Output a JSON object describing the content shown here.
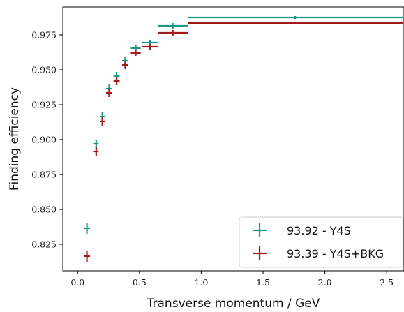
{
  "chart_data": {
    "type": "scatter",
    "xlabel": "Transverse momentum / GeV",
    "ylabel": "Finding efficiency",
    "xlim": [
      -0.12,
      2.64
    ],
    "ylim": [
      0.806,
      0.995
    ],
    "x_ticks": [
      0.0,
      0.5,
      1.0,
      1.5,
      2.0,
      2.5
    ],
    "x_tick_labels": [
      "0.0",
      "0.5",
      "1.0",
      "1.5",
      "2.0",
      "2.5"
    ],
    "y_ticks": [
      0.825,
      0.85,
      0.875,
      0.9,
      0.925,
      0.95,
      0.975
    ],
    "y_tick_labels": [
      "0.825",
      "0.850",
      "0.875",
      "0.900",
      "0.925",
      "0.950",
      "0.975"
    ],
    "grid": false,
    "legend_position": "bottom-right",
    "series": [
      {
        "name": "93.92 - Y4S",
        "color": "#1a9985",
        "points": [
          {
            "x": 0.075,
            "xlo": 0.05,
            "xhi": 0.1,
            "y": 0.8365,
            "yerr": 0.004
          },
          {
            "x": 0.15,
            "xlo": 0.13,
            "xhi": 0.17,
            "y": 0.897,
            "yerr": 0.003
          },
          {
            "x": 0.2,
            "xlo": 0.18,
            "xhi": 0.22,
            "y": 0.9165,
            "yerr": 0.003
          },
          {
            "x": 0.255,
            "xlo": 0.23,
            "xhi": 0.28,
            "y": 0.9365,
            "yerr": 0.003
          },
          {
            "x": 0.315,
            "xlo": 0.29,
            "xhi": 0.34,
            "y": 0.9455,
            "yerr": 0.003
          },
          {
            "x": 0.385,
            "xlo": 0.36,
            "xhi": 0.41,
            "y": 0.9565,
            "yerr": 0.003
          },
          {
            "x": 0.47,
            "xlo": 0.43,
            "xhi": 0.51,
            "y": 0.9655,
            "yerr": 0.002
          },
          {
            "x": 0.585,
            "xlo": 0.52,
            "xhi": 0.65,
            "y": 0.9695,
            "yerr": 0.002
          },
          {
            "x": 0.77,
            "xlo": 0.65,
            "xhi": 0.89,
            "y": 0.9815,
            "yerr": 0.002
          },
          {
            "x": 1.76,
            "xlo": 0.89,
            "xhi": 2.63,
            "y": 0.9875,
            "yerr": 0.001
          }
        ]
      },
      {
        "name": "93.39 - Y4S+BKG",
        "color": "#a31a1a",
        "points": [
          {
            "x": 0.075,
            "xlo": 0.05,
            "xhi": 0.1,
            "y": 0.8165,
            "yerr": 0.004
          },
          {
            "x": 0.15,
            "xlo": 0.13,
            "xhi": 0.17,
            "y": 0.8915,
            "yerr": 0.003
          },
          {
            "x": 0.2,
            "xlo": 0.18,
            "xhi": 0.22,
            "y": 0.913,
            "yerr": 0.003
          },
          {
            "x": 0.255,
            "xlo": 0.23,
            "xhi": 0.28,
            "y": 0.9335,
            "yerr": 0.003
          },
          {
            "x": 0.315,
            "xlo": 0.29,
            "xhi": 0.34,
            "y": 0.942,
            "yerr": 0.003
          },
          {
            "x": 0.385,
            "xlo": 0.36,
            "xhi": 0.41,
            "y": 0.9535,
            "yerr": 0.003
          },
          {
            "x": 0.47,
            "xlo": 0.43,
            "xhi": 0.51,
            "y": 0.962,
            "yerr": 0.002
          },
          {
            "x": 0.585,
            "xlo": 0.52,
            "xhi": 0.65,
            "y": 0.9665,
            "yerr": 0.002
          },
          {
            "x": 0.77,
            "xlo": 0.65,
            "xhi": 0.89,
            "y": 0.9765,
            "yerr": 0.002
          },
          {
            "x": 1.76,
            "xlo": 0.89,
            "xhi": 2.63,
            "y": 0.9835,
            "yerr": 0.001
          }
        ]
      }
    ]
  }
}
